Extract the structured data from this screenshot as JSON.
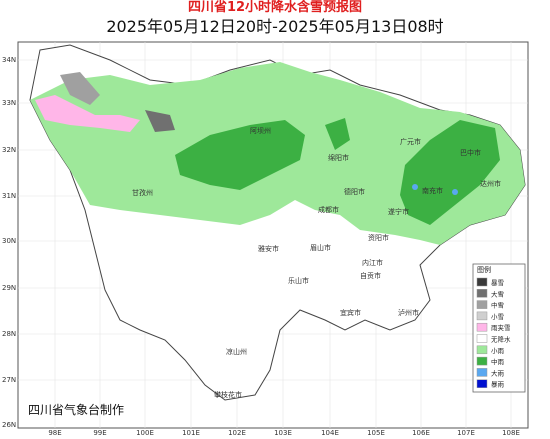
{
  "header": {
    "title": "四川省12小时降水含雪预报图",
    "subtitle": "2025年05月12日20时-2025年05月13日08时"
  },
  "axes": {
    "lon_labels": [
      "98E",
      "99E",
      "100E",
      "101E",
      "102E",
      "103E",
      "104E",
      "105E",
      "106E",
      "107E",
      "108E"
    ],
    "lat_labels": [
      "34N",
      "33N",
      "32N",
      "31N",
      "30N",
      "29N",
      "28N",
      "27N",
      "26N"
    ]
  },
  "cities": [
    {
      "label": "阿坝州"
    },
    {
      "label": "绵阳市"
    },
    {
      "label": "广元市"
    },
    {
      "label": "巴中市"
    },
    {
      "label": "达州市"
    },
    {
      "label": "南充市"
    },
    {
      "label": "遂宁市"
    },
    {
      "label": "德阳市"
    },
    {
      "label": "成都市"
    },
    {
      "label": "资阳市"
    },
    {
      "label": "甘孜州"
    },
    {
      "label": "雅安市"
    },
    {
      "label": "眉山市"
    },
    {
      "label": "内江市"
    },
    {
      "label": "乐山市"
    },
    {
      "label": "自贡市"
    },
    {
      "label": "宜宾市"
    },
    {
      "label": "泸州市"
    },
    {
      "label": "凉山州"
    },
    {
      "label": "攀枝花市"
    }
  ],
  "legend": {
    "title": "图例",
    "items": [
      {
        "label": "暴雪",
        "color": "#3a3a3a"
      },
      {
        "label": "大雪",
        "color": "#707070"
      },
      {
        "label": "中雪",
        "color": "#a0a0a0"
      },
      {
        "label": "小雪",
        "color": "#cfcfcf"
      },
      {
        "label": "雨夹雪",
        "color": "#ffb6e8"
      },
      {
        "label": "无降水",
        "color": "#ffffff"
      },
      {
        "label": "小雨",
        "color": "#9ee89a"
      },
      {
        "label": "中雨",
        "color": "#3cb043"
      },
      {
        "label": "大雨",
        "color": "#5aa8f0"
      },
      {
        "label": "暴雨",
        "color": "#0010d0"
      }
    ]
  },
  "footer": "四川省气象台制作"
}
